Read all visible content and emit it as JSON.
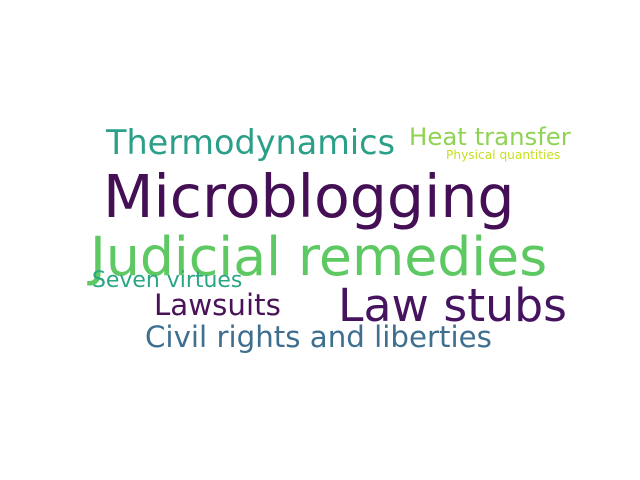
{
  "word_cloud": {
    "words": [
      {
        "text": "Microblogging",
        "color": "#440f55"
      },
      {
        "text": "Judicial remedies",
        "color": "#5ec962"
      },
      {
        "text": "Law stubs",
        "color": "#46135f"
      },
      {
        "text": "Thermodynamics",
        "color": "#2b9f88"
      },
      {
        "text": "Civil rights and liberties",
        "color": "#3e6f8f"
      },
      {
        "text": "Lawsuits",
        "color": "#4a1357"
      },
      {
        "text": "Heat transfer",
        "color": "#8fd352"
      },
      {
        "text": "Seven virtues",
        "color": "#2aa684"
      },
      {
        "text": "Physical quantities",
        "color": "#c7e020"
      }
    ]
  }
}
